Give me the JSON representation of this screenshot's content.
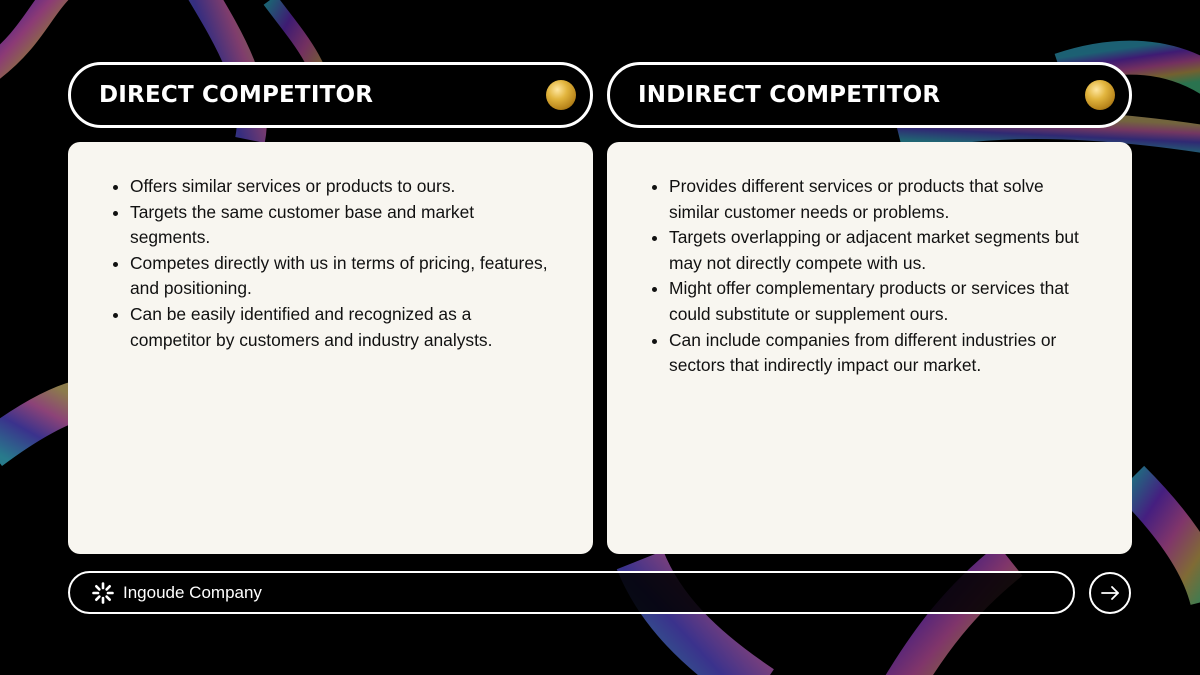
{
  "colors": {
    "background": "#000000",
    "card": "#f8f6f0",
    "pill_border": "#ffffff",
    "accent_orb": "#d4a436"
  },
  "direct": {
    "title": "DIRECT COMPETITOR",
    "points": [
      "Offers similar services or products to ours.",
      "Targets the same customer base and market segments.",
      "Competes directly with us in terms of pricing, features, and positioning.",
      "Can be easily identified and recognized as a competitor by customers and industry analysts."
    ]
  },
  "indirect": {
    "title": "INDIRECT COMPETITOR",
    "points": [
      "Provides different services or products that solve similar customer needs or problems.",
      "Targets overlapping or adjacent market segments but may not directly compete with us.",
      "Might offer complementary products or services that could substitute or supplement ours.",
      "Can include companies from different industries or sectors that indirectly impact our market."
    ]
  },
  "footer": {
    "company": "Ingoude Company",
    "logo_icon": "sunburst-logo-icon",
    "next_icon": "arrow-right-icon"
  }
}
